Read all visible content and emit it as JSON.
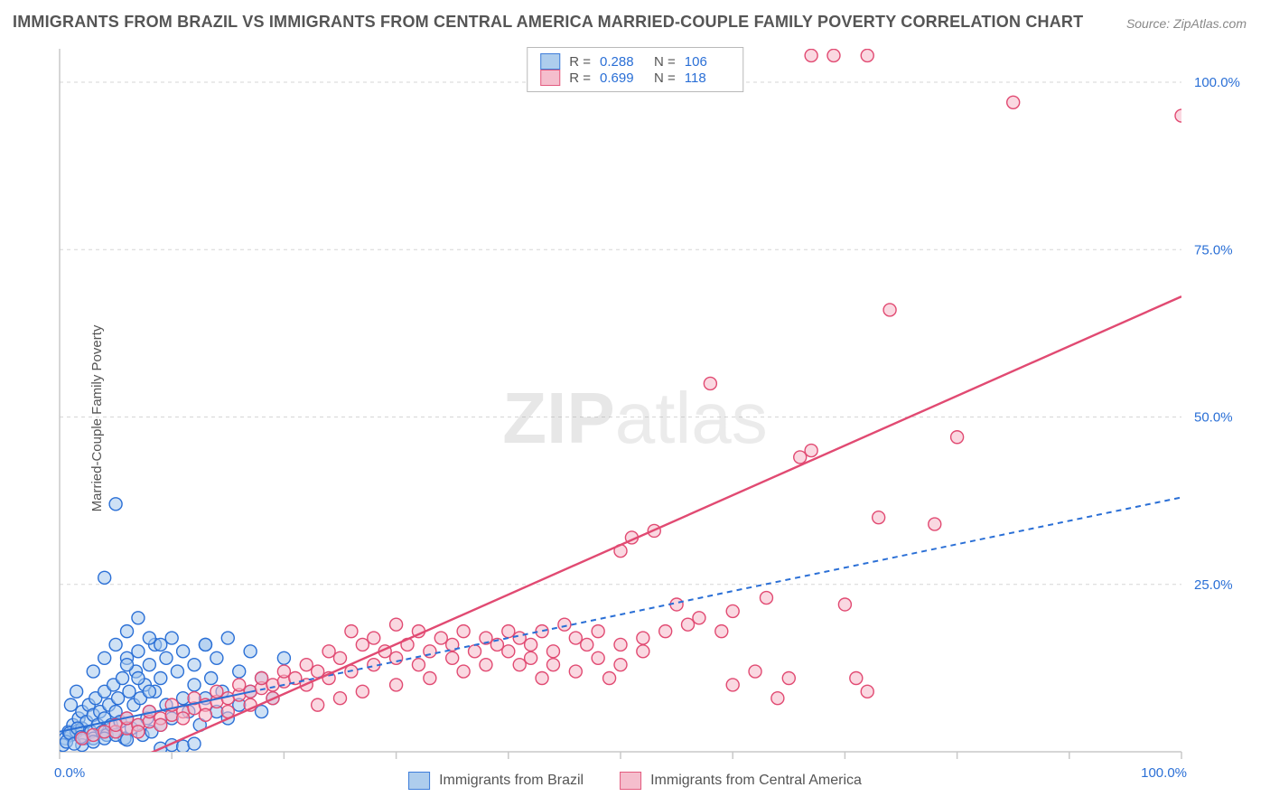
{
  "title": "IMMIGRANTS FROM BRAZIL VS IMMIGRANTS FROM CENTRAL AMERICA MARRIED-COUPLE FAMILY POVERTY CORRELATION CHART",
  "source_label": "Source:",
  "source_value": "ZipAtlas.com",
  "watermark_bold": "ZIP",
  "watermark_light": "atlas",
  "y_axis_label": "Married-Couple Family Poverty",
  "chart": {
    "type": "scatter",
    "xlim": [
      0,
      100
    ],
    "ylim": [
      0,
      105
    ],
    "x_ticks": [
      0,
      10,
      20,
      30,
      40,
      50,
      60,
      70,
      80,
      90,
      100
    ],
    "x_tick_labels_shown": {
      "0": "0.0%",
      "100": "100.0%"
    },
    "y_ticks": [
      25,
      50,
      75,
      100
    ],
    "y_tick_labels": {
      "25": "25.0%",
      "50": "50.0%",
      "75": "75.0%",
      "100": "100.0%"
    },
    "grid_color": "#d6d6d6",
    "background_color": "#ffffff",
    "marker_radius": 7,
    "marker_stroke_width": 1.4,
    "series": [
      {
        "id": "brazil",
        "label": "Immigrants from Brazil",
        "fill": "#a6c8ec",
        "fill_opacity": 0.55,
        "stroke": "#2a6fd6",
        "R": "0.288",
        "N": "106",
        "trend": {
          "x1": 0,
          "y1": 3,
          "x2": 100,
          "y2": 38,
          "solid_until_x": 17,
          "color": "#2a6fd6",
          "dash": "6 5",
          "width": 2
        },
        "points": [
          [
            0.5,
            2
          ],
          [
            0.8,
            3
          ],
          [
            1,
            2.5
          ],
          [
            1.2,
            4
          ],
          [
            1.5,
            3
          ],
          [
            1.7,
            5
          ],
          [
            2,
            3.5
          ],
          [
            2,
            6
          ],
          [
            2.2,
            2
          ],
          [
            2.4,
            4.5
          ],
          [
            2.6,
            7
          ],
          [
            2.8,
            3
          ],
          [
            3,
            5.5
          ],
          [
            3,
            2
          ],
          [
            3.2,
            8
          ],
          [
            3.4,
            4
          ],
          [
            3.6,
            6
          ],
          [
            3.8,
            3
          ],
          [
            4,
            5
          ],
          [
            4,
            9
          ],
          [
            4.2,
            2.5
          ],
          [
            4.4,
            7
          ],
          [
            4.6,
            4
          ],
          [
            4.8,
            10
          ],
          [
            5,
            3
          ],
          [
            5,
            6
          ],
          [
            5.2,
            8
          ],
          [
            5.4,
            4.5
          ],
          [
            5.6,
            11
          ],
          [
            5.8,
            2
          ],
          [
            6,
            14
          ],
          [
            6,
            5
          ],
          [
            6.2,
            9
          ],
          [
            6.4,
            3.5
          ],
          [
            6.6,
            7
          ],
          [
            6.8,
            12
          ],
          [
            7,
            4
          ],
          [
            7,
            15
          ],
          [
            7.2,
            8
          ],
          [
            7.4,
            2.5
          ],
          [
            7.6,
            10
          ],
          [
            7.8,
            5
          ],
          [
            8,
            13
          ],
          [
            8,
            6
          ],
          [
            8.2,
            3
          ],
          [
            8.5,
            16
          ],
          [
            8.5,
            9
          ],
          [
            9,
            11
          ],
          [
            9,
            4
          ],
          [
            9.5,
            14
          ],
          [
            9.5,
            7
          ],
          [
            10,
            17
          ],
          [
            10,
            5
          ],
          [
            10.5,
            12
          ],
          [
            11,
            8
          ],
          [
            11,
            15
          ],
          [
            11.5,
            6
          ],
          [
            12,
            10
          ],
          [
            12,
            13
          ],
          [
            12.5,
            4
          ],
          [
            13,
            16
          ],
          [
            13,
            8
          ],
          [
            13.5,
            11
          ],
          [
            14,
            6
          ],
          [
            14,
            14
          ],
          [
            14.5,
            9
          ],
          [
            15,
            17
          ],
          [
            15,
            5
          ],
          [
            16,
            12
          ],
          [
            16,
            7
          ],
          [
            17,
            15
          ],
          [
            17,
            9
          ],
          [
            18,
            6
          ],
          [
            18,
            11
          ],
          [
            19,
            8
          ],
          [
            20,
            14
          ],
          [
            4,
            26
          ],
          [
            5,
            37
          ],
          [
            6,
            18
          ],
          [
            7,
            20
          ],
          [
            8,
            17
          ],
          [
            9,
            16
          ],
          [
            9,
            0.5
          ],
          [
            10,
            1
          ],
          [
            11,
            0.8
          ],
          [
            12,
            1.2
          ],
          [
            13,
            16
          ],
          [
            3,
            12
          ],
          [
            4,
            14
          ],
          [
            5,
            16
          ],
          [
            6,
            13
          ],
          [
            7,
            11
          ],
          [
            8,
            9
          ],
          [
            2,
            1
          ],
          [
            3,
            1.5
          ],
          [
            4,
            2
          ],
          [
            5,
            2.5
          ],
          [
            6,
            1.8
          ],
          [
            1,
            7
          ],
          [
            1.5,
            9
          ],
          [
            0.3,
            1
          ],
          [
            0.6,
            1.5
          ],
          [
            0.9,
            2.8
          ],
          [
            1.3,
            1.2
          ],
          [
            1.6,
            3.5
          ],
          [
            1.9,
            2.2
          ]
        ]
      },
      {
        "id": "central_america",
        "label": "Immigrants from Central America",
        "fill": "#f5b8c8",
        "fill_opacity": 0.55,
        "stroke": "#e14a72",
        "R": "0.699",
        "N": "118",
        "trend": {
          "x1": 7,
          "y1": -1,
          "x2": 100,
          "y2": 68,
          "solid_until_x": 100,
          "color": "#e14a72",
          "dash": "",
          "width": 2.4
        },
        "points": [
          [
            2,
            2
          ],
          [
            3,
            2.5
          ],
          [
            4,
            3
          ],
          [
            5,
            3
          ],
          [
            5,
            4
          ],
          [
            6,
            3.5
          ],
          [
            6,
            5
          ],
          [
            7,
            4
          ],
          [
            7,
            3
          ],
          [
            8,
            4.5
          ],
          [
            8,
            6
          ],
          [
            9,
            5
          ],
          [
            9,
            4
          ],
          [
            10,
            5.5
          ],
          [
            10,
            7
          ],
          [
            11,
            6
          ],
          [
            11,
            5
          ],
          [
            12,
            6.5
          ],
          [
            12,
            8
          ],
          [
            13,
            7
          ],
          [
            13,
            5.5
          ],
          [
            14,
            7.5
          ],
          [
            14,
            9
          ],
          [
            15,
            8
          ],
          [
            15,
            6
          ],
          [
            16,
            8.5
          ],
          [
            16,
            10
          ],
          [
            17,
            9
          ],
          [
            17,
            7
          ],
          [
            18,
            9.5
          ],
          [
            18,
            11
          ],
          [
            19,
            10
          ],
          [
            19,
            8
          ],
          [
            20,
            10.5
          ],
          [
            20,
            12
          ],
          [
            21,
            11
          ],
          [
            22,
            13
          ],
          [
            22,
            10
          ],
          [
            23,
            12
          ],
          [
            24,
            15
          ],
          [
            24,
            11
          ],
          [
            25,
            14
          ],
          [
            26,
            18
          ],
          [
            26,
            12
          ],
          [
            27,
            16
          ],
          [
            28,
            13
          ],
          [
            28,
            17
          ],
          [
            29,
            15
          ],
          [
            30,
            19
          ],
          [
            30,
            14
          ],
          [
            31,
            16
          ],
          [
            32,
            18
          ],
          [
            32,
            13
          ],
          [
            33,
            15
          ],
          [
            34,
            17
          ],
          [
            35,
            16
          ],
          [
            35,
            14
          ],
          [
            36,
            18
          ],
          [
            37,
            15
          ],
          [
            38,
            17
          ],
          [
            39,
            16
          ],
          [
            40,
            18
          ],
          [
            40,
            15
          ],
          [
            41,
            17
          ],
          [
            42,
            16
          ],
          [
            43,
            18
          ],
          [
            44,
            15
          ],
          [
            45,
            19
          ],
          [
            46,
            17
          ],
          [
            47,
            16
          ],
          [
            48,
            18
          ],
          [
            49,
            11
          ],
          [
            50,
            13
          ],
          [
            50,
            30
          ],
          [
            51,
            32
          ],
          [
            52,
            15
          ],
          [
            53,
            33
          ],
          [
            54,
            18
          ],
          [
            55,
            22
          ],
          [
            56,
            19
          ],
          [
            57,
            20
          ],
          [
            58,
            55
          ],
          [
            59,
            18
          ],
          [
            60,
            21
          ],
          [
            60,
            10
          ],
          [
            62,
            12
          ],
          [
            63,
            23
          ],
          [
            64,
            8
          ],
          [
            65,
            11
          ],
          [
            66,
            44
          ],
          [
            67,
            45
          ],
          [
            67,
            104
          ],
          [
            69,
            104
          ],
          [
            72,
            104
          ],
          [
            70,
            22
          ],
          [
            71,
            11
          ],
          [
            72,
            9
          ],
          [
            73,
            35
          ],
          [
            74,
            66
          ],
          [
            78,
            34
          ],
          [
            80,
            47
          ],
          [
            85,
            97
          ],
          [
            100,
            95
          ],
          [
            41,
            13
          ],
          [
            43,
            11
          ],
          [
            36,
            12
          ],
          [
            38,
            13
          ],
          [
            33,
            11
          ],
          [
            30,
            10
          ],
          [
            27,
            9
          ],
          [
            25,
            8
          ],
          [
            23,
            7
          ],
          [
            48,
            14
          ],
          [
            46,
            12
          ],
          [
            44,
            13
          ],
          [
            42,
            14
          ],
          [
            52,
            17
          ],
          [
            50,
            16
          ]
        ]
      }
    ]
  },
  "legend_corr_header": {
    "R_label": "R =",
    "N_label": "N ="
  }
}
